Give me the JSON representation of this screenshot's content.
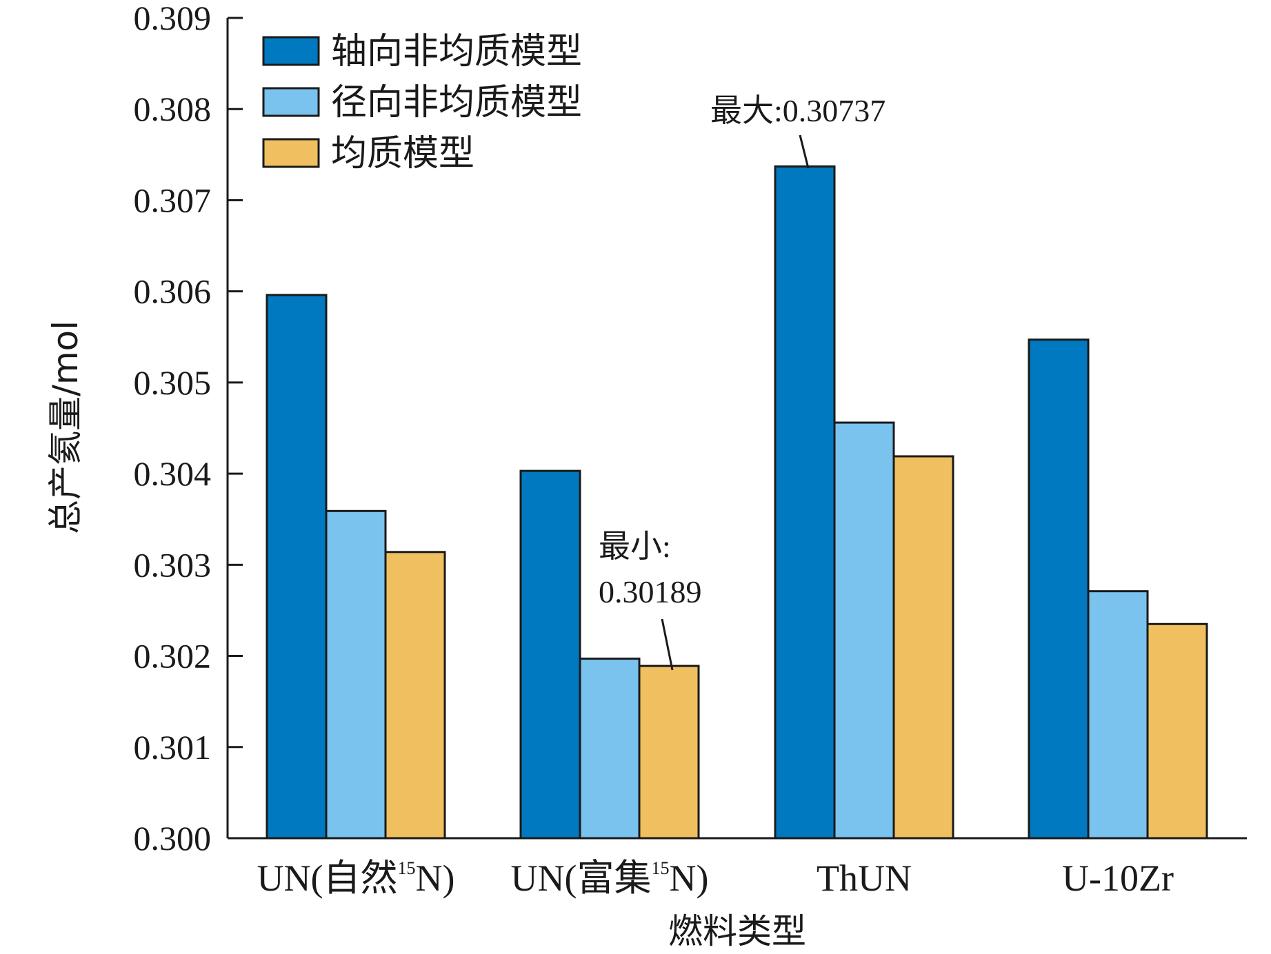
{
  "chart_data": {
    "type": "bar",
    "title": "",
    "xlabel": "燃料类型",
    "ylabel": "总产氦量/mol",
    "ylim": [
      0.3,
      0.309
    ],
    "yticks": [
      "0.300",
      "0.301",
      "0.302",
      "0.303",
      "0.304",
      "0.305",
      "0.306",
      "0.307",
      "0.308",
      "0.309"
    ],
    "categories": [
      {
        "main": "UN(自然",
        "sup": "15",
        "tail": "N)"
      },
      {
        "main": "UN(富集",
        "sup": "15",
        "tail": "N)"
      },
      {
        "main": "ThUN",
        "sup": "",
        "tail": ""
      },
      {
        "main": "U-10Zr",
        "sup": "",
        "tail": ""
      }
    ],
    "series": [
      {
        "name": "轴向非均质模型",
        "color": "#0079c1",
        "values": [
          0.30596,
          0.30403,
          0.30737,
          0.30547
        ]
      },
      {
        "name": "径向非均质模型",
        "color": "#79c3ee",
        "values": [
          0.30359,
          0.30197,
          0.30456,
          0.30271
        ]
      },
      {
        "name": "均质模型",
        "color": "#f0c060",
        "values": [
          0.30314,
          0.30189,
          0.30419,
          0.30235
        ]
      }
    ],
    "legend_position": "top-left",
    "annotations": [
      {
        "name": "max",
        "lines": [
          "最大:0.30737"
        ],
        "series": 0,
        "category": 2
      },
      {
        "name": "min",
        "lines": [
          "最小:",
          "0.30189"
        ],
        "series": 2,
        "category": 1
      }
    ]
  }
}
